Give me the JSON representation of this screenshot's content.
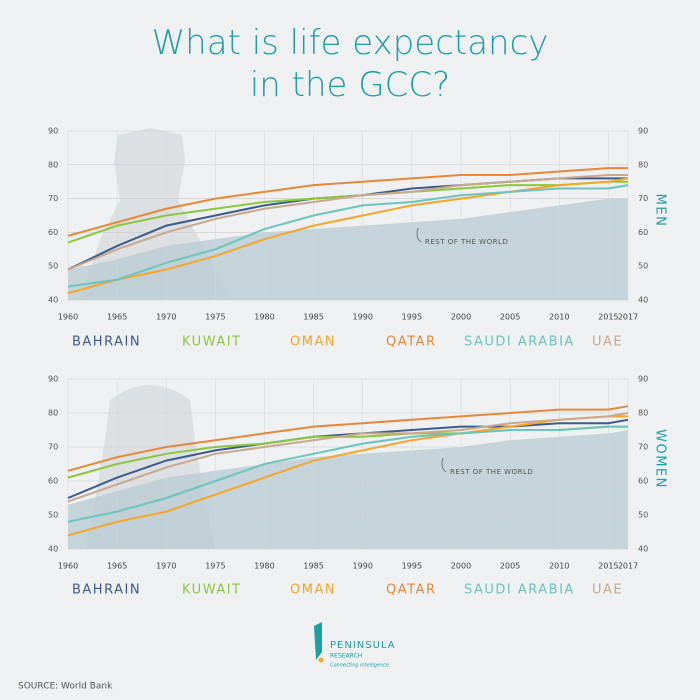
{
  "title": "What is life expectancy in the GCC?",
  "source": "SOURCE: World Bank",
  "logo": {
    "name": "PENINSULA",
    "sub": "RESEARCH",
    "tagline": "Connecting intelligence."
  },
  "chart_data": [
    {
      "type": "line",
      "label": "MEN",
      "x": [
        1960,
        1965,
        1970,
        1975,
        1980,
        1985,
        1990,
        1995,
        2000,
        2005,
        2010,
        2015,
        2017
      ],
      "xlim": [
        1960,
        2017
      ],
      "xticks": [
        1960,
        1965,
        1970,
        1975,
        1980,
        1985,
        1990,
        1995,
        2000,
        2005,
        2010,
        2015,
        2017
      ],
      "ylim": [
        40,
        90
      ],
      "yticks": [
        40,
        50,
        60,
        70,
        80,
        90
      ],
      "grid": true,
      "area": {
        "name": "REST OF THE WORLD",
        "color": "#b5cbd1",
        "values": [
          49,
          52,
          56,
          58,
          60,
          61,
          62,
          63,
          64,
          66,
          68,
          70,
          70
        ]
      },
      "series": [
        {
          "name": "BAHRAIN",
          "color": "#3b5b8c",
          "values": [
            49,
            56,
            62,
            65,
            68,
            70,
            71,
            73,
            74,
            75,
            76,
            76,
            76
          ]
        },
        {
          "name": "KUWAIT",
          "color": "#8cc63f",
          "values": [
            57,
            62,
            65,
            67,
            69,
            70,
            71,
            72,
            73,
            74,
            74,
            75,
            75
          ]
        },
        {
          "name": "OMAN",
          "color": "#f4a62a",
          "values": [
            42,
            46,
            49,
            53,
            58,
            62,
            65,
            68,
            70,
            72,
            74,
            75,
            76
          ]
        },
        {
          "name": "QATAR",
          "color": "#e5883a",
          "values": [
            59,
            63,
            67,
            70,
            72,
            74,
            75,
            76,
            77,
            77,
            78,
            79,
            79
          ]
        },
        {
          "name": "SAUDI ARABIA",
          "color": "#6cc4bd",
          "values": [
            44,
            46,
            51,
            55,
            61,
            65,
            68,
            69,
            71,
            72,
            73,
            73,
            74
          ]
        },
        {
          "name": "UAE",
          "color": "#c9a88c",
          "values": [
            49,
            55,
            60,
            64,
            67,
            69,
            71,
            72,
            74,
            75,
            76,
            77,
            77
          ]
        }
      ]
    },
    {
      "type": "line",
      "label": "WOMEN",
      "x": [
        1960,
        1965,
        1970,
        1975,
        1980,
        1985,
        1990,
        1995,
        2000,
        2005,
        2010,
        2015,
        2017
      ],
      "xlim": [
        1960,
        2017
      ],
      "xticks": [
        1960,
        1965,
        1970,
        1975,
        1980,
        1985,
        1990,
        1995,
        2000,
        2005,
        2010,
        2015,
        2017
      ],
      "ylim": [
        40,
        90
      ],
      "yticks": [
        40,
        50,
        60,
        70,
        80,
        90
      ],
      "grid": true,
      "area": {
        "name": "REST OF THE WORLD",
        "color": "#b5cbd1",
        "values": [
          53,
          57,
          61,
          63,
          65,
          67,
          68,
          69,
          70,
          72,
          73,
          74,
          75
        ]
      },
      "series": [
        {
          "name": "BAHRAIN",
          "color": "#3b5b8c",
          "values": [
            55,
            61,
            66,
            69,
            71,
            73,
            74,
            75,
            76,
            76,
            77,
            77,
            78
          ]
        },
        {
          "name": "KUWAIT",
          "color": "#8cc63f",
          "values": [
            61,
            65,
            68,
            70,
            71,
            73,
            73,
            74,
            74,
            75,
            75,
            76,
            76
          ]
        },
        {
          "name": "OMAN",
          "color": "#f4a62a",
          "values": [
            44,
            48,
            51,
            56,
            61,
            66,
            69,
            72,
            74,
            76,
            78,
            79,
            79
          ]
        },
        {
          "name": "QATAR",
          "color": "#e5883a",
          "values": [
            63,
            67,
            70,
            72,
            74,
            76,
            77,
            78,
            79,
            80,
            81,
            81,
            82
          ]
        },
        {
          "name": "SAUDI ARABIA",
          "color": "#6cc4bd",
          "values": [
            48,
            51,
            55,
            60,
            65,
            68,
            71,
            73,
            74,
            75,
            75,
            76,
            76
          ]
        },
        {
          "name": "UAE",
          "color": "#c9a88c",
          "values": [
            54,
            59,
            64,
            68,
            70,
            72,
            74,
            74,
            75,
            77,
            78,
            79,
            80
          ]
        }
      ]
    }
  ]
}
